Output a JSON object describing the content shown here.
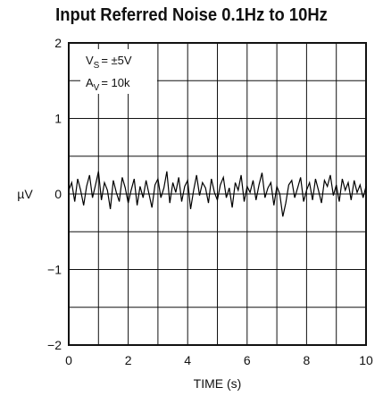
{
  "chart_data": {
    "type": "line",
    "title": "Input Referred Noise 0.1Hz to 10Hz",
    "xlabel": "TIME (s)",
    "ylabel": "µV",
    "xlim": [
      0,
      10
    ],
    "ylim": [
      -2,
      2
    ],
    "xticks": [
      "0",
      "2",
      "4",
      "6",
      "8",
      "10"
    ],
    "yticks": [
      "−2",
      "−1",
      "0",
      "1",
      "2"
    ],
    "grid": true,
    "grid_divisions": {
      "x": 10,
      "y": 8
    },
    "annotation": {
      "vs": "= ±5V",
      "av": "= 10k",
      "vs_symbol": "V",
      "vs_sub": "S",
      "av_symbol": "A",
      "av_sub": "V"
    },
    "series": [
      {
        "x": [
          0,
          0.1,
          0.2,
          0.3,
          0.4,
          0.5,
          0.6,
          0.7,
          0.8,
          0.9,
          1.0,
          1.1,
          1.2,
          1.3,
          1.4,
          1.5,
          1.6,
          1.7,
          1.8,
          1.9,
          2.0,
          2.1,
          2.2,
          2.3,
          2.4,
          2.5,
          2.6,
          2.7,
          2.8,
          2.9,
          3.0,
          3.1,
          3.2,
          3.3,
          3.4,
          3.5,
          3.6,
          3.7,
          3.8,
          3.9,
          4.0,
          4.1,
          4.2,
          4.3,
          4.4,
          4.5,
          4.6,
          4.7,
          4.8,
          4.9,
          5.0,
          5.1,
          5.2,
          5.3,
          5.4,
          5.5,
          5.6,
          5.7,
          5.8,
          5.9,
          6.0,
          6.1,
          6.2,
          6.3,
          6.4,
          6.5,
          6.6,
          6.7,
          6.8,
          6.9,
          7.0,
          7.1,
          7.2,
          7.3,
          7.4,
          7.5,
          7.6,
          7.7,
          7.8,
          7.9,
          8.0,
          8.1,
          8.2,
          8.3,
          8.4,
          8.5,
          8.6,
          8.7,
          8.8,
          8.9,
          9.0,
          9.1,
          9.2,
          9.3,
          9.4,
          9.5,
          9.6,
          9.7,
          9.8,
          9.9,
          10.0
        ],
        "y": [
          0.05,
          0.15,
          -0.1,
          0.2,
          0.05,
          -0.15,
          0.1,
          0.25,
          -0.05,
          0.12,
          0.3,
          -0.08,
          0.15,
          0.05,
          -0.2,
          0.18,
          0.02,
          -0.1,
          0.22,
          0.08,
          -0.12,
          0.05,
          0.2,
          -0.15,
          0.1,
          -0.05,
          0.18,
          0.0,
          -0.18,
          0.12,
          0.2,
          -0.05,
          0.08,
          0.3,
          -0.12,
          0.15,
          0.02,
          0.22,
          -0.1,
          0.1,
          0.18,
          -0.2,
          0.05,
          0.25,
          -0.02,
          0.15,
          0.08,
          -0.12,
          0.2,
          0.02,
          -0.08,
          0.12,
          0.22,
          -0.05,
          0.08,
          -0.18,
          0.15,
          0.05,
          0.25,
          -0.1,
          0.1,
          0.02,
          0.18,
          -0.08,
          0.12,
          0.28,
          -0.05,
          0.08,
          0.15,
          -0.15,
          0.1,
          0.0,
          -0.3,
          -0.12,
          0.12,
          0.18,
          -0.05,
          0.08,
          0.22,
          -0.1,
          0.05,
          0.15,
          -0.08,
          0.2,
          0.05,
          -0.12,
          0.18,
          0.1,
          0.25,
          -0.02,
          0.12,
          -0.1,
          0.2,
          0.05,
          0.15,
          -0.08,
          0.18,
          0.02,
          0.12,
          -0.05,
          0.1
        ]
      }
    ]
  }
}
